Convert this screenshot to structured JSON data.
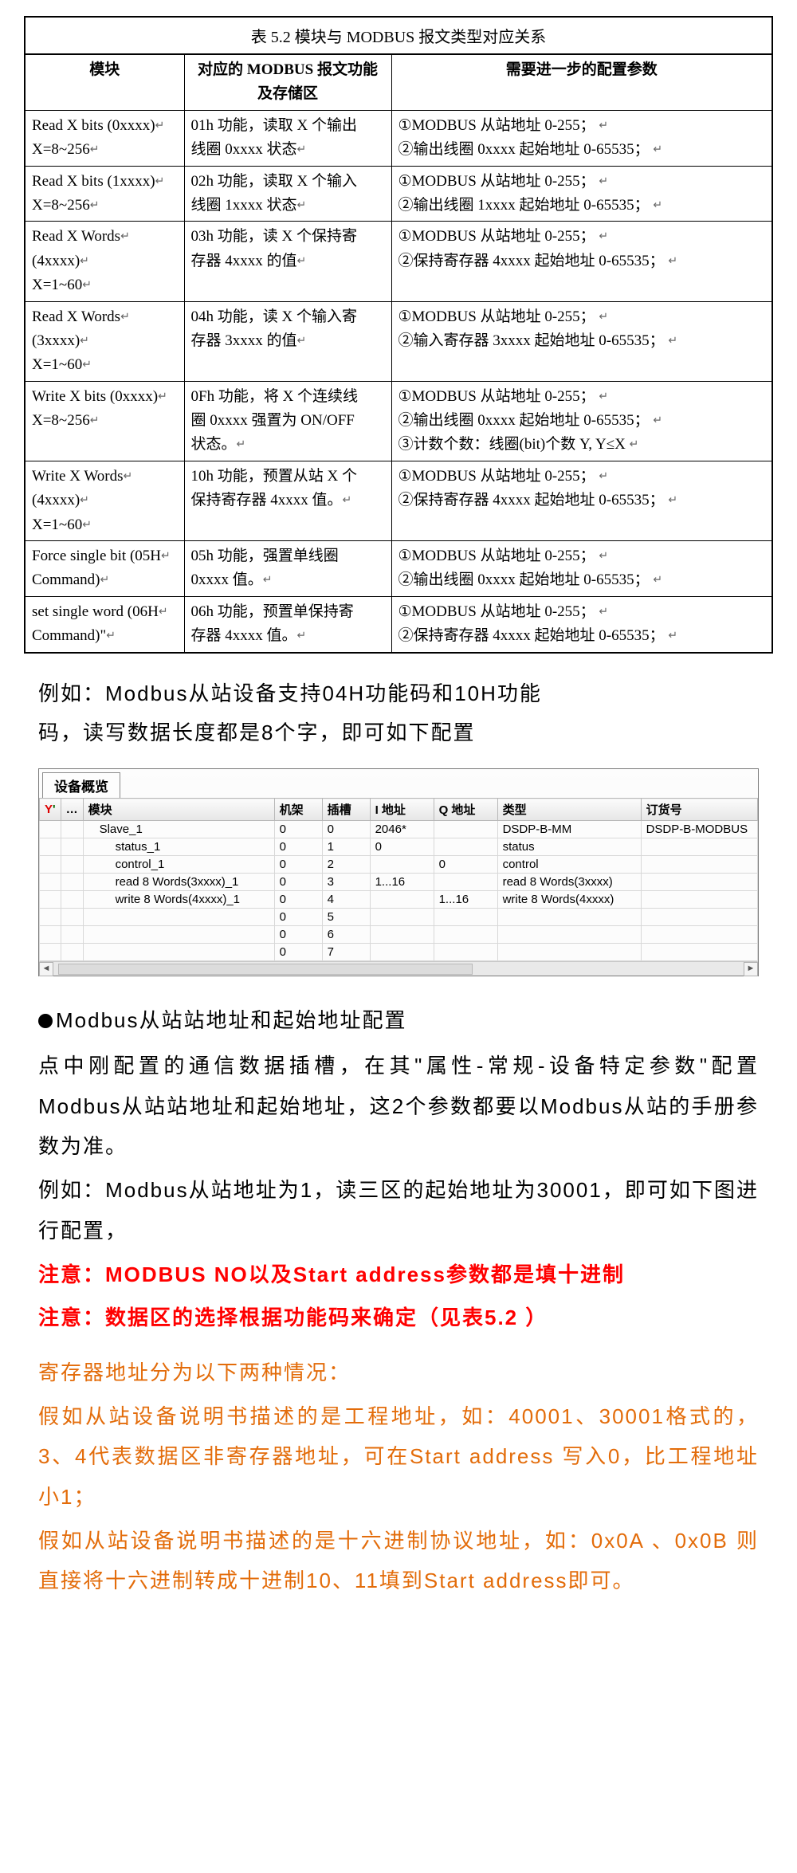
{
  "table52": {
    "caption": "表 5.2  模块与 MODBUS 报文类型对应关系",
    "head": {
      "c1": "模块",
      "c2": "对应的 MODBUS 报文功能及存储区",
      "c3": "需要进一步的配置参数"
    },
    "rows": [
      {
        "c1a": "Read X bits (0xxxx)",
        "c1b": "X=8~256",
        "c2a": "01h 功能，读取 X 个输出",
        "c2b": "线圈 0xxxx 状态",
        "c3a": "①MODBUS 从站地址 0-255；",
        "c3b": "②输出线圈 0xxxx 起始地址 0-65535；"
      },
      {
        "c1a": "Read X bits (1xxxx)",
        "c1b": "X=8~256",
        "c2a": "02h 功能，读取 X 个输入",
        "c2b": "线圈 1xxxx 状态",
        "c3a": "①MODBUS 从站地址 0-255；",
        "c3b": "②输出线圈 1xxxx 起始地址 0-65535；"
      },
      {
        "c1a": "Read   X   Words",
        "c1b": "(4xxxx)",
        "c1c": "X=1~60",
        "c2a": "03h 功能，读 X 个保持寄",
        "c2b": "存器 4xxxx 的值",
        "c3a": "①MODBUS 从站地址 0-255；",
        "c3b": "②保持寄存器 4xxxx 起始地址 0-65535；"
      },
      {
        "c1a": "Read   X   Words",
        "c1b": "(3xxxx)",
        "c1c": "X=1~60",
        "c2a": "04h 功能，读 X 个输入寄",
        "c2b": "存器 3xxxx 的值",
        "c3a": "①MODBUS 从站地址 0-255；",
        "c3b": "②输入寄存器 3xxxx 起始地址 0-65535；"
      },
      {
        "c1a": "Write X bits (0xxxx)",
        "c1b": "X=8~256",
        "c2a": "0Fh 功能，将 X 个连续线",
        "c2b": "圈 0xxxx 强置为 ON/OFF",
        "c2c": "状态。",
        "c3a": "①MODBUS 从站地址 0-255；",
        "c3b": "②输出线圈 0xxxx 起始地址 0-65535；",
        "c3c": "③计数个数：线圈(bit)个数 Y, Y≤X"
      },
      {
        "c1a": "Write   X   Words",
        "c1b": "(4xxxx)",
        "c1c": "X=1~60",
        "c2a": "10h 功能，预置从站 X 个",
        "c2b": "保持寄存器 4xxxx 值。",
        "c3a": "①MODBUS 从站地址 0-255；",
        "c3b": "②保持寄存器 4xxxx 起始地址 0-65535；"
      },
      {
        "c1a": "Force single bit (05H",
        "c1b": "Command)",
        "c2a": "05h 功能，强置单线圈",
        "c2b": "0xxxx 值。",
        "c3a": "①MODBUS 从站地址 0-255；",
        "c3b": "②输出线圈 0xxxx 起始地址 0-65535；"
      },
      {
        "c1a": "set single word (06H",
        "c1b": "Command)\"",
        "c2a": "06h 功能，预置单保持寄",
        "c2b": "存器 4xxxx 值。",
        "c3a": "①MODBUS 从站地址 0-255；",
        "c3b": "②保持寄存器 4xxxx 起始地址 0-65535；"
      }
    ]
  },
  "para1a": "例如：Modbus从站设备支持04H功能码和10H功能",
  "para1b": "码，读写数据长度都是8个字，即可如下配置",
  "deviceOverview": {
    "tab": "设备概览",
    "columns": {
      "c0": "",
      "c1": "…",
      "c2": "模块",
      "c3": "机架",
      "c4": "插槽",
      "c5": "I 地址",
      "c6": "Q 地址",
      "c7": "类型",
      "c8": "订货号"
    },
    "rows": [
      {
        "mod": "Slave_1",
        "rack": "0",
        "slot": "0",
        "iaddr": "2046*",
        "qaddr": "",
        "type": "DSDP-B-MM",
        "ord": "DSDP-B-MODBUS"
      },
      {
        "mod": "status_1",
        "rack": "0",
        "slot": "1",
        "iaddr": "0",
        "qaddr": "",
        "type": "status",
        "ord": ""
      },
      {
        "mod": "control_1",
        "rack": "0",
        "slot": "2",
        "iaddr": "",
        "qaddr": "0",
        "type": "control",
        "ord": ""
      },
      {
        "mod": "read 8 Words(3xxxx)_1",
        "rack": "0",
        "slot": "3",
        "iaddr": "1...16",
        "qaddr": "",
        "type": "read 8 Words(3xxxx)",
        "ord": ""
      },
      {
        "mod": "write 8 Words(4xxxx)_1",
        "rack": "0",
        "slot": "4",
        "iaddr": "",
        "qaddr": "1...16",
        "type": "write 8 Words(4xxxx)",
        "ord": ""
      },
      {
        "mod": "",
        "rack": "0",
        "slot": "5",
        "iaddr": "",
        "qaddr": "",
        "type": "",
        "ord": ""
      },
      {
        "mod": "",
        "rack": "0",
        "slot": "6",
        "iaddr": "",
        "qaddr": "",
        "type": "",
        "ord": ""
      },
      {
        "mod": "",
        "rack": "0",
        "slot": "7",
        "iaddr": "",
        "qaddr": "",
        "type": "",
        "ord": ""
      }
    ]
  },
  "section2": {
    "heading": "Modbus从站站地址和起始地址配置",
    "p1": "点中刚配置的通信数据插槽，在其\"属性-常规-设备特定参数\"配置Modbus从站站地址和起始地址，这2个参数都要以Modbus从站的手册参数为准。",
    "p2": "例如：Modbus从站地址为1，读三区的起始地址为30001，即可如下图进行配置，",
    "warn1": "注意：MODBUS NO以及Start address参数都是填十进制",
    "warn2": "注意：数据区的选择根据功能码来确定（见表5.2 ）",
    "o1": "寄存器地址分为以下两种情况：",
    "o2": "假如从站设备说明书描述的是工程地址，如：40001、30001格式的，3、4代表数据区非寄存器地址，可在Start address 写入0，比工程地址小1；",
    "o3": "假如从站设备说明书描述的是十六进制协议地址，如：0x0A 、0x0B 则直接将十六进制转成十进制10、11填到Start address即可。"
  }
}
